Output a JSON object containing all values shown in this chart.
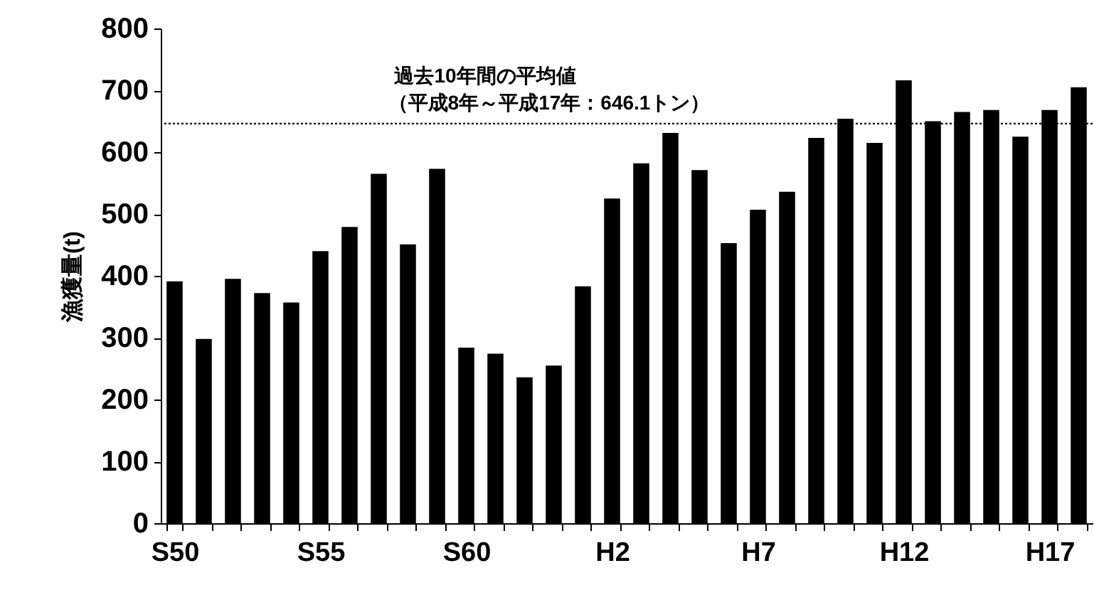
{
  "chart_data": {
    "type": "bar",
    "ylabel": "漁獲量(t)",
    "categories": [
      "S50",
      null,
      null,
      null,
      null,
      "S55",
      null,
      null,
      null,
      null,
      "S60",
      null,
      null,
      null,
      null,
      "H2",
      null,
      null,
      null,
      null,
      "H7",
      null,
      null,
      null,
      null,
      "H12",
      null,
      null,
      null,
      null,
      "H17",
      null
    ],
    "values": [
      391,
      298,
      395,
      372,
      357,
      440,
      479,
      565,
      451,
      573,
      284,
      274,
      236,
      255,
      383,
      525,
      582,
      631,
      571,
      453,
      507,
      536,
      623,
      654,
      615,
      716,
      650,
      665,
      668,
      625,
      668,
      705
    ],
    "color": "#000000",
    "ylim": [
      0,
      800
    ],
    "yticks": [
      0,
      100,
      200,
      300,
      400,
      500,
      600,
      700,
      800
    ],
    "grid": false,
    "annotations": [
      "（平成8年～平成17年：646.1トン）"
    ],
    "ref_lines": [
      {
        "axis": "y",
        "value": 646.1,
        "label": "過去10年間の平均値",
        "color": "#000000",
        "line_style": "dotted"
      }
    ]
  }
}
